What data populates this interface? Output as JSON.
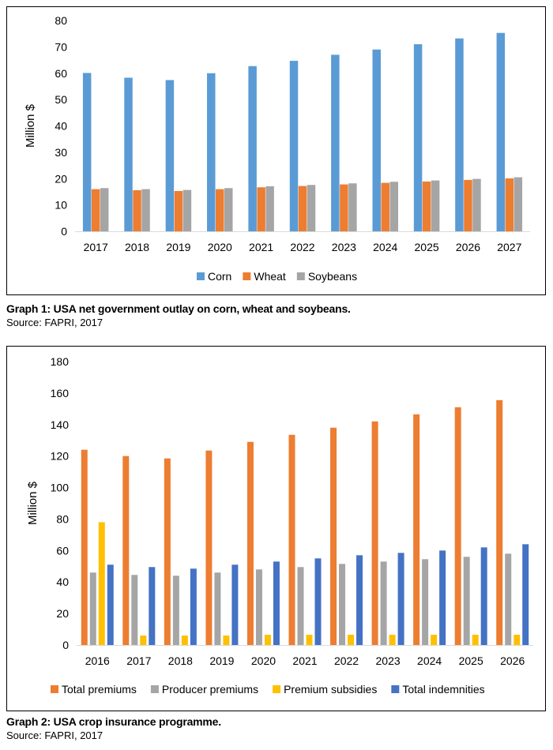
{
  "chart_data": [
    {
      "type": "bar",
      "categories": [
        "2017",
        "2018",
        "2019",
        "2020",
        "2021",
        "2022",
        "2023",
        "2024",
        "2025",
        "2026",
        "2027"
      ],
      "series": [
        {
          "name": "Corn",
          "color": "#5B9BD5",
          "values": [
            60.1,
            58.3,
            57.4,
            60.0,
            62.7,
            64.7,
            67.0,
            69.0,
            71.0,
            73.2,
            75.3
          ]
        },
        {
          "name": "Wheat",
          "color": "#ED7D31",
          "values": [
            16.0,
            15.6,
            15.3,
            16.0,
            16.7,
            17.2,
            17.8,
            18.4,
            18.9,
            19.5,
            20.1
          ]
        },
        {
          "name": "Soybeans",
          "color": "#A5A5A5",
          "values": [
            16.4,
            16.0,
            15.7,
            16.4,
            17.1,
            17.6,
            18.2,
            18.8,
            19.3,
            19.9,
            20.5
          ]
        }
      ],
      "ylabel": "Million $",
      "ylim": [
        0,
        80
      ],
      "yticks": [
        "0",
        "10",
        "20",
        "30",
        "40",
        "50",
        "60",
        "70",
        "80"
      ],
      "legend_position": "bottom",
      "grid": false
    },
    {
      "type": "bar",
      "categories": [
        "2016",
        "2017",
        "2018",
        "2019",
        "2020",
        "2021",
        "2022",
        "2023",
        "2024",
        "2025",
        "2026"
      ],
      "series": [
        {
          "name": "Total premiums",
          "color": "#ED7D31",
          "values": [
            124,
            120,
            118.5,
            123.5,
            129,
            133.5,
            138,
            142,
            146.5,
            151,
            155.5
          ]
        },
        {
          "name": "Producer premiums",
          "color": "#A5A5A5",
          "values": [
            46,
            44.5,
            44,
            46,
            48,
            49.5,
            51.5,
            53,
            54.5,
            56,
            58
          ]
        },
        {
          "name": "Premium subsidies",
          "color": "#FFC000",
          "values": [
            78,
            6,
            6,
            6,
            6.5,
            6.5,
            6.5,
            6.5,
            6.5,
            6.5,
            6.5
          ]
        },
        {
          "name": "Total indemnities",
          "color": "#4472C4",
          "values": [
            51,
            49.5,
            48.5,
            51,
            53,
            55,
            57,
            58.5,
            60,
            62,
            64
          ]
        }
      ],
      "ylabel": "Million $",
      "ylim": [
        0,
        180
      ],
      "yticks": [
        "0",
        "20",
        "40",
        "60",
        "80",
        "100",
        "120",
        "140",
        "160",
        "180"
      ],
      "legend_position": "bottom",
      "grid": false
    }
  ],
  "captions": [
    {
      "title": "Graph 1: USA net government outlay on corn, wheat and soybeans.",
      "source": "Source: FAPRI, 2017"
    },
    {
      "title": "Graph 2: USA crop insurance programme.",
      "source": "Source: FAPRI, 2017"
    }
  ]
}
